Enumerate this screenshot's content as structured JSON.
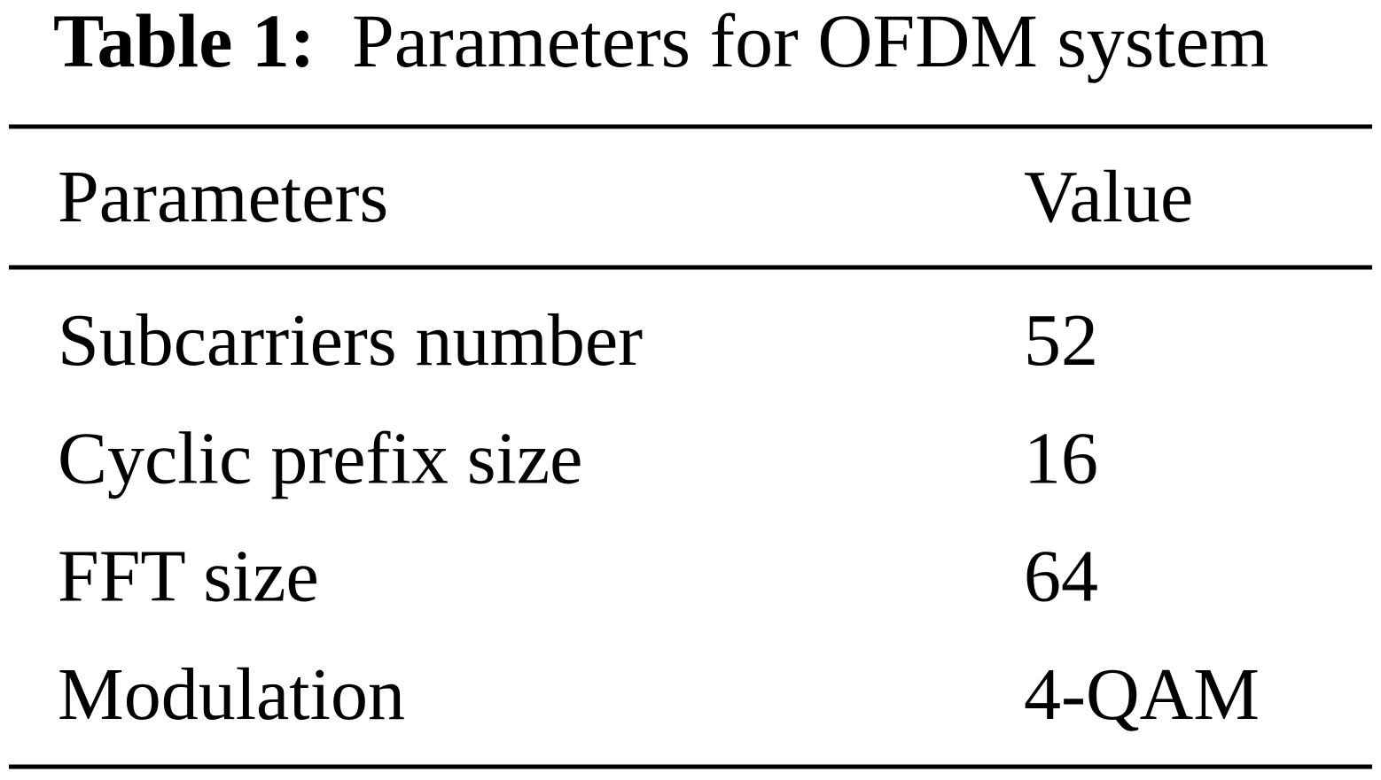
{
  "table": {
    "caption": {
      "label": "Table 1:",
      "title": "Parameters for OFDM system"
    },
    "header": [
      "Parameters",
      "Value"
    ],
    "rows": [
      [
        "Subcarriers number",
        52
      ],
      [
        "Cyclic prefix size",
        16
      ],
      [
        "FFT size",
        64
      ],
      [
        "Modulation",
        "4-QAM"
      ]
    ]
  }
}
